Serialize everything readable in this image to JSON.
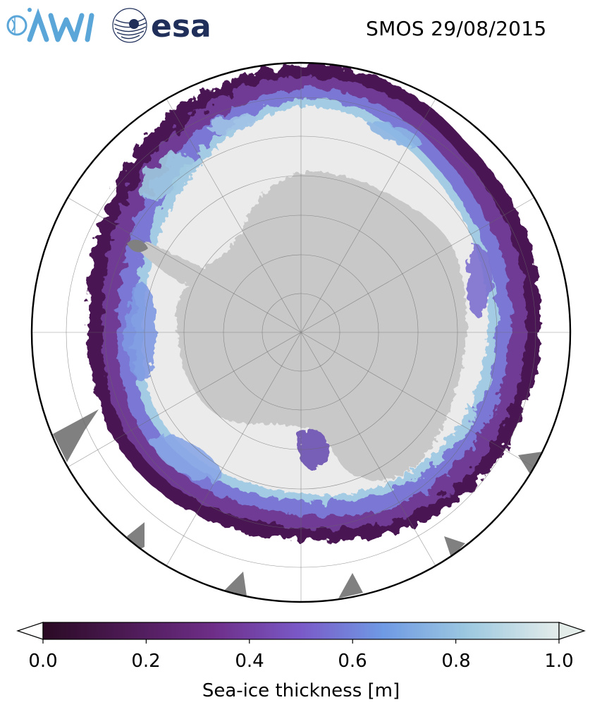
{
  "title": "SMOS 29/08/2015",
  "logos": [
    {
      "name": "awi-logo",
      "text": "AWI"
    },
    {
      "name": "esa-logo",
      "text": "esa"
    }
  ],
  "map": {
    "projection": "south-polar-stereographic",
    "land_color": "#c8c8c8",
    "open_water_color": "#ffffff",
    "thick_ice_color": "#ebebeb",
    "other_land_color": "#808080"
  },
  "colorbar": {
    "label": "Sea-ice thickness [m]",
    "min": 0.0,
    "max": 1.0,
    "ticks": [
      "0.0",
      "0.2",
      "0.4",
      "0.6",
      "0.8",
      "1.0"
    ],
    "extend": "both",
    "colors": [
      "#2a0a24",
      "#4c1a54",
      "#6e2e88",
      "#7a5ac8",
      "#6f9ae4",
      "#9fcae0",
      "#e4ecea"
    ]
  }
}
